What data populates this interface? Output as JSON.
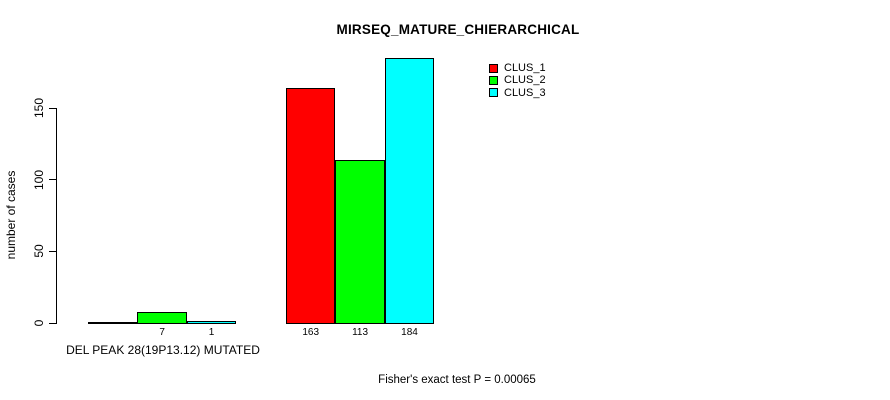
{
  "chart_data": {
    "type": "bar",
    "title": "MIRSEQ_MATURE_CHIERARCHICAL",
    "ylabel": "number of cases",
    "xlabel": "",
    "ylim": [
      0,
      150
    ],
    "y_ticks": [
      0,
      50,
      100,
      150
    ],
    "grid": false,
    "legend_position": "top-right",
    "series": [
      {
        "name": "CLUS_1",
        "color": "#FF0000"
      },
      {
        "name": "CLUS_2",
        "color": "#00FF00"
      },
      {
        "name": "CLUS_3",
        "color": "#00FFFF"
      }
    ],
    "groups": [
      {
        "label": "DEL PEAK 28(19P13.12) MUTATED",
        "values": [
          0,
          7,
          1
        ],
        "value_labels": [
          "",
          "7",
          "1"
        ]
      },
      {
        "label": "",
        "values": [
          163,
          113,
          184
        ],
        "value_labels": [
          "163",
          "113",
          "184"
        ]
      }
    ],
    "annotation": "Fisher's exact test P = 0.00065"
  }
}
